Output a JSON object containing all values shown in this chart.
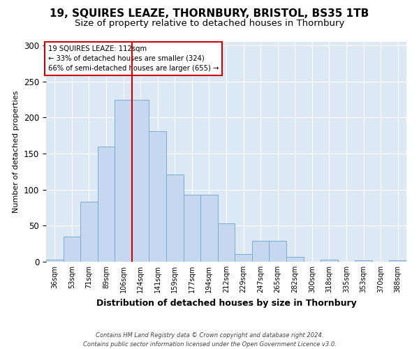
{
  "title": "19, SQUIRES LEAZE, THORNBURY, BRISTOL, BS35 1TB",
  "subtitle": "Size of property relative to detached houses in Thornbury",
  "xlabel": "Distribution of detached houses by size in Thornbury",
  "ylabel": "Number of detached properties",
  "footer_line1": "Contains HM Land Registry data © Crown copyright and database right 2024.",
  "footer_line2": "Contains public sector information licensed under the Open Government Licence v3.0.",
  "bar_labels": [
    "36sqm",
    "53sqm",
    "71sqm",
    "89sqm",
    "106sqm",
    "124sqm",
    "141sqm",
    "159sqm",
    "177sqm",
    "194sqm",
    "212sqm",
    "229sqm",
    "247sqm",
    "265sqm",
    "282sqm",
    "300sqm",
    "318sqm",
    "335sqm",
    "353sqm",
    "370sqm",
    "388sqm"
  ],
  "bar_values": [
    3,
    35,
    83,
    160,
    225,
    225,
    181,
    121,
    93,
    93,
    53,
    11,
    29,
    29,
    7,
    0,
    3,
    0,
    2,
    0,
    2
  ],
  "bar_color": "#c5d8f0",
  "bar_edge_color": "#7aadd4",
  "red_line_x": 4.5,
  "annotation_title": "19 SQUIRES LEAZE: 112sqm",
  "annotation_line1": "← 33% of detached houses are smaller (324)",
  "annotation_line2": "66% of semi-detached houses are larger (655) →",
  "annotation_box_color": "#ffffff",
  "annotation_box_edge": "#cc0000",
  "red_line_color": "#cc0000",
  "ylim": [
    0,
    305
  ],
  "yticks": [
    0,
    50,
    100,
    150,
    200,
    250,
    300
  ],
  "background_color": "#dde8f5",
  "title_fontsize": 11,
  "subtitle_fontsize": 9.5
}
